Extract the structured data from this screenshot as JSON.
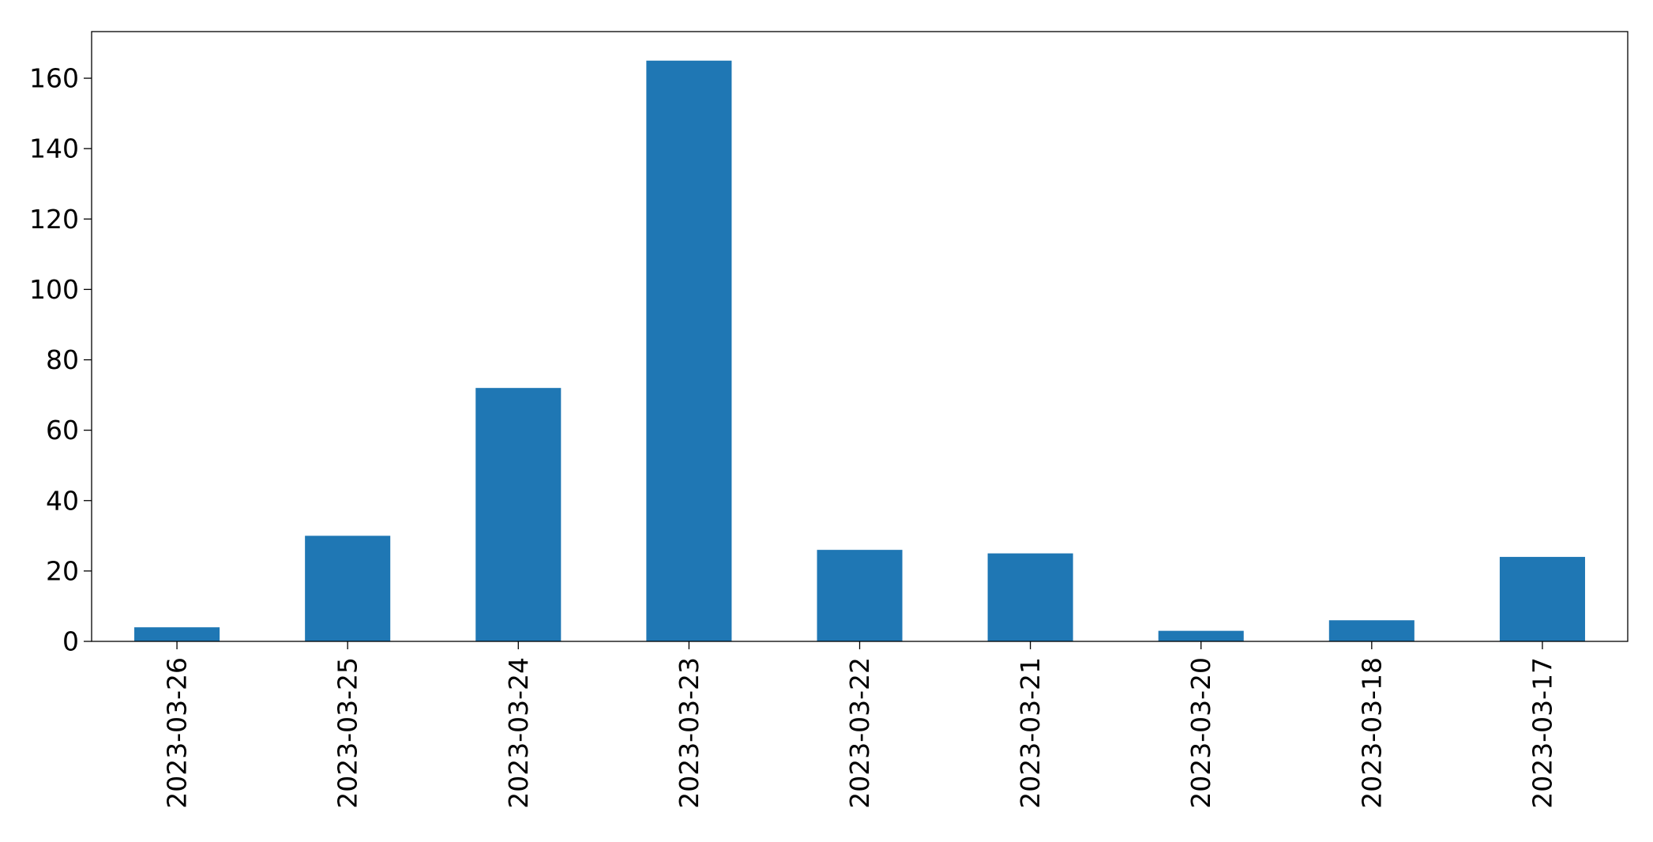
{
  "chart_data": {
    "type": "bar",
    "categories": [
      "2023-03-26",
      "2023-03-25",
      "2023-03-24",
      "2023-03-23",
      "2023-03-22",
      "2023-03-21",
      "2023-03-20",
      "2023-03-18",
      "2023-03-17"
    ],
    "values": [
      4,
      30,
      72,
      165,
      26,
      25,
      3,
      6,
      24
    ],
    "title": "",
    "xlabel": "",
    "ylabel": "",
    "ylim": [
      0,
      173.25
    ],
    "yticks": [
      0,
      20,
      40,
      60,
      80,
      100,
      120,
      140,
      160
    ],
    "grid": false,
    "legend": "none",
    "bar_color": "#1f77b4"
  }
}
